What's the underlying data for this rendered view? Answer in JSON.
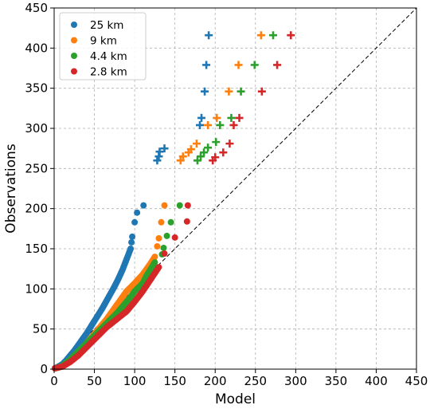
{
  "chart_data": {
    "type": "scatter",
    "title": "",
    "xlabel": "Model",
    "ylabel": "Observations",
    "xlim": [
      0,
      450
    ],
    "ylim": [
      0,
      450
    ],
    "xticks": [
      "0",
      "50",
      "100",
      "150",
      "200",
      "250",
      "300",
      "350",
      "400",
      "450"
    ],
    "yticks": [
      "0",
      "50",
      "100",
      "150",
      "200",
      "250",
      "300",
      "350",
      "400",
      "450"
    ],
    "grid": true,
    "legend_position": "top-left",
    "reference_line": "1:1 dashed diagonal",
    "series": [
      {
        "name": "25 km",
        "color": "#1f77b4",
        "curve": [
          [
            1,
            1
          ],
          [
            5,
            3
          ],
          [
            10,
            6
          ],
          [
            15,
            11
          ],
          [
            20,
            17
          ],
          [
            25,
            23
          ],
          [
            30,
            30
          ],
          [
            35,
            37
          ],
          [
            40,
            44
          ],
          [
            45,
            52
          ],
          [
            50,
            60
          ],
          [
            55,
            68
          ],
          [
            60,
            76
          ],
          [
            65,
            85
          ],
          [
            70,
            94
          ],
          [
            75,
            103
          ],
          [
            80,
            113
          ],
          [
            85,
            124
          ],
          [
            90,
            137
          ],
          [
            95,
            150
          ]
        ],
        "circles": [
          [
            96,
            158
          ],
          [
            97,
            165
          ],
          [
            100,
            183
          ],
          [
            103,
            195
          ],
          [
            111,
            204
          ]
        ],
        "crosses": [
          [
            128,
            260
          ],
          [
            130,
            265
          ],
          [
            131,
            271
          ],
          [
            137,
            275
          ],
          [
            181,
            304
          ],
          [
            183,
            313
          ],
          [
            187,
            346
          ],
          [
            189,
            379
          ],
          [
            192,
            416
          ]
        ]
      },
      {
        "name": "9 km",
        "color": "#ff7f0e",
        "curve": [
          [
            1,
            1
          ],
          [
            5,
            2
          ],
          [
            10,
            4
          ],
          [
            15,
            8
          ],
          [
            20,
            12
          ],
          [
            25,
            17
          ],
          [
            30,
            22
          ],
          [
            35,
            27
          ],
          [
            40,
            32
          ],
          [
            45,
            38
          ],
          [
            50,
            44
          ],
          [
            55,
            50
          ],
          [
            60,
            56
          ],
          [
            65,
            62
          ],
          [
            70,
            69
          ],
          [
            75,
            76
          ],
          [
            80,
            83
          ],
          [
            85,
            90
          ],
          [
            90,
            97
          ],
          [
            100,
            107
          ],
          [
            110,
            118
          ],
          [
            115,
            125
          ],
          [
            120,
            132
          ],
          [
            125,
            140
          ]
        ],
        "circles": [
          [
            128,
            153
          ],
          [
            130,
            163
          ],
          [
            133,
            183
          ],
          [
            137,
            204
          ]
        ],
        "crosses": [
          [
            157,
            260
          ],
          [
            160,
            265
          ],
          [
            167,
            270
          ],
          [
            170,
            274
          ],
          [
            177,
            281
          ],
          [
            191,
            304
          ],
          [
            202,
            313
          ],
          [
            217,
            346
          ],
          [
            229,
            379
          ],
          [
            257,
            416
          ]
        ]
      },
      {
        "name": "4.4 km",
        "color": "#2ca02c",
        "curve": [
          [
            1,
            1
          ],
          [
            5,
            2
          ],
          [
            10,
            4
          ],
          [
            15,
            8
          ],
          [
            20,
            12
          ],
          [
            25,
            17
          ],
          [
            30,
            22
          ],
          [
            35,
            27
          ],
          [
            40,
            32
          ],
          [
            45,
            37
          ],
          [
            50,
            42
          ],
          [
            55,
            47
          ],
          [
            60,
            52
          ],
          [
            65,
            57
          ],
          [
            70,
            62
          ],
          [
            75,
            67
          ],
          [
            80,
            72
          ],
          [
            85,
            78
          ],
          [
            90,
            84
          ],
          [
            95,
            90
          ],
          [
            100,
            97
          ],
          [
            110,
            107
          ],
          [
            115,
            117
          ],
          [
            120,
            125
          ],
          [
            125,
            133
          ]
        ],
        "circles": [
          [
            134,
            143
          ],
          [
            136,
            151
          ],
          [
            140,
            166
          ],
          [
            145,
            183
          ],
          [
            156,
            204
          ]
        ],
        "crosses": [
          [
            178,
            260
          ],
          [
            182,
            265
          ],
          [
            186,
            270
          ],
          [
            191,
            276
          ],
          [
            201,
            283
          ],
          [
            206,
            304
          ],
          [
            220,
            313
          ],
          [
            232,
            346
          ],
          [
            249,
            379
          ],
          [
            272,
            416
          ]
        ]
      },
      {
        "name": "2.8 km",
        "color": "#d62728",
        "curve": [
          [
            1,
            1
          ],
          [
            5,
            2
          ],
          [
            10,
            3
          ],
          [
            15,
            6
          ],
          [
            20,
            9
          ],
          [
            25,
            13
          ],
          [
            30,
            17
          ],
          [
            35,
            22
          ],
          [
            40,
            27
          ],
          [
            45,
            32
          ],
          [
            50,
            37
          ],
          [
            55,
            42
          ],
          [
            60,
            47
          ],
          [
            65,
            52
          ],
          [
            70,
            56
          ],
          [
            75,
            60
          ],
          [
            80,
            64
          ],
          [
            85,
            68
          ],
          [
            90,
            72
          ],
          [
            95,
            78
          ],
          [
            100,
            84
          ],
          [
            110,
            97
          ],
          [
            120,
            112
          ],
          [
            130,
            127
          ]
        ],
        "circles": [
          [
            137,
            144
          ],
          [
            150,
            164
          ],
          [
            165,
            184
          ],
          [
            166,
            204
          ]
        ],
        "crosses": [
          [
            197,
            260
          ],
          [
            200,
            264
          ],
          [
            210,
            270
          ],
          [
            218,
            281
          ],
          [
            223,
            304
          ],
          [
            230,
            313
          ],
          [
            258,
            346
          ],
          [
            277,
            379
          ],
          [
            294,
            416
          ]
        ]
      }
    ]
  }
}
